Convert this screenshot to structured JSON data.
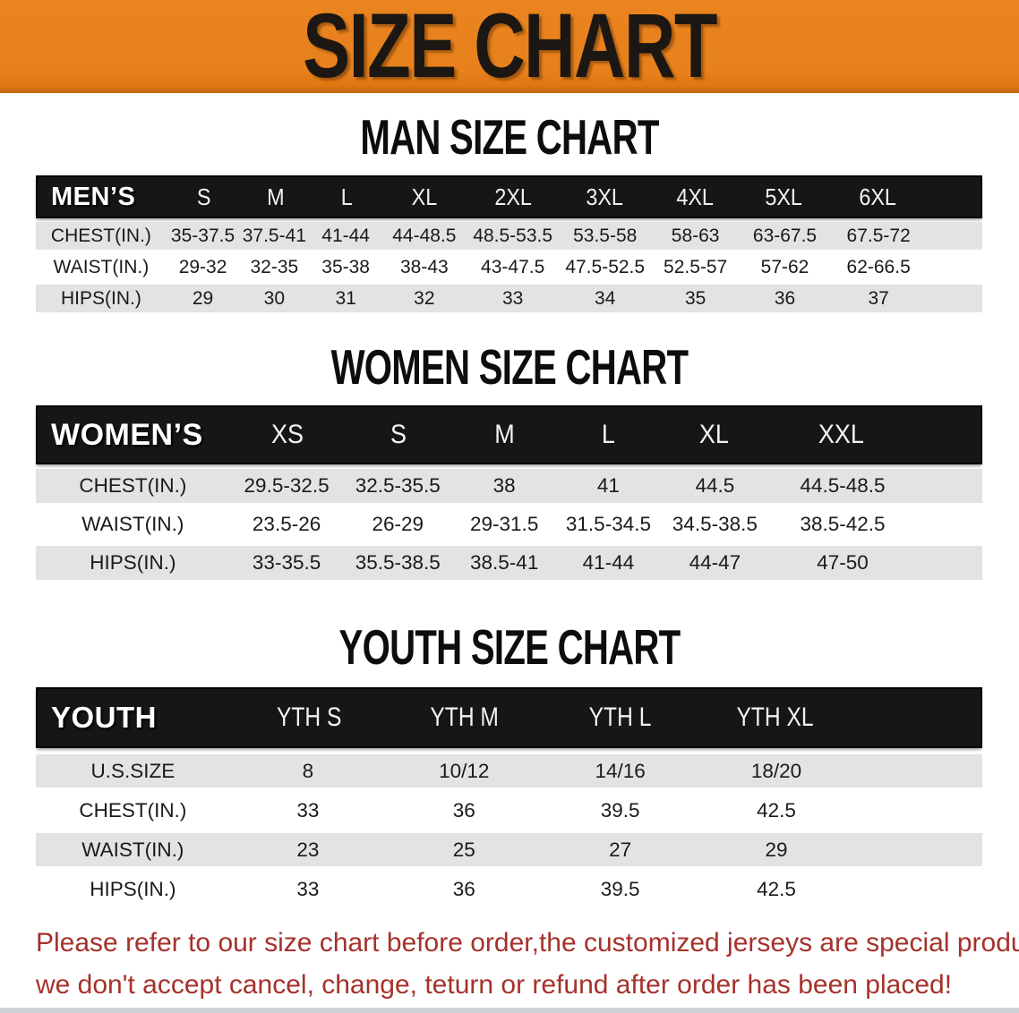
{
  "banner": {
    "title": "SIZE CHART"
  },
  "colors": {
    "banner_orange": "#e8811c",
    "header_black": "#161616",
    "row_gray": "#e3e3e3",
    "note_red": "#a5322b"
  },
  "men": {
    "heading": "MAN SIZE CHART",
    "label": "MEN’S",
    "sizes": [
      "S",
      "M",
      "L",
      "XL",
      "2XL",
      "3XL",
      "4XL",
      "5XL",
      "6XL"
    ],
    "rows": [
      {
        "label": "CHEST(IN.)",
        "values": [
          "35-37.5",
          "37.5-41",
          "41-44",
          "44-48.5",
          "48.5-53.5",
          "53.5-58",
          "58-63",
          "63-67.5",
          "67.5-72"
        ]
      },
      {
        "label": "WAIST(IN.)",
        "values": [
          "29-32",
          "32-35",
          "35-38",
          "38-43",
          "43-47.5",
          "47.5-52.5",
          "52.5-57",
          "57-62",
          "62-66.5"
        ]
      },
      {
        "label": "HIPS(IN.)",
        "values": [
          "29",
          "30",
          "31",
          "32",
          "33",
          "34",
          "35",
          "36",
          "37"
        ]
      }
    ]
  },
  "women": {
    "heading": "WOMEN SIZE CHART",
    "label": "WOMEN’S",
    "sizes": [
      "XS",
      "S",
      "M",
      "L",
      "XL",
      "XXL"
    ],
    "rows": [
      {
        "label": "CHEST(IN.)",
        "values": [
          "29.5-32.5",
          "32.5-35.5",
          "38",
          "41",
          "44.5",
          "44.5-48.5"
        ]
      },
      {
        "label": "WAIST(IN.)",
        "values": [
          "23.5-26",
          "26-29",
          "29-31.5",
          "31.5-34.5",
          "34.5-38.5",
          "38.5-42.5"
        ]
      },
      {
        "label": "HIPS(IN.)",
        "values": [
          "33-35.5",
          "35.5-38.5",
          "38.5-41",
          "41-44",
          "44-47",
          "47-50"
        ]
      }
    ]
  },
  "youth": {
    "heading": "YOUTH SIZE CHART",
    "label": "YOUTH",
    "sizes": [
      "YTH S",
      "YTH M",
      "YTH L",
      "YTH XL"
    ],
    "rows": [
      {
        "label": "U.S.SIZE",
        "values": [
          "8",
          "10/12",
          "14/16",
          "18/20"
        ]
      },
      {
        "label": "CHEST(IN.)",
        "values": [
          "33",
          "36",
          "39.5",
          "42.5"
        ]
      },
      {
        "label": "WAIST(IN.)",
        "values": [
          "23",
          "25",
          "27",
          "29"
        ]
      },
      {
        "label": "HIPS(IN.)",
        "values": [
          "33",
          "36",
          "39.5",
          "42.5"
        ]
      }
    ]
  },
  "note": {
    "line1": "Please refer to our size chart before order,the customized jerseys are special products,",
    "line2": "we don't accept cancel, change, teturn or refund after order has been placed!"
  }
}
